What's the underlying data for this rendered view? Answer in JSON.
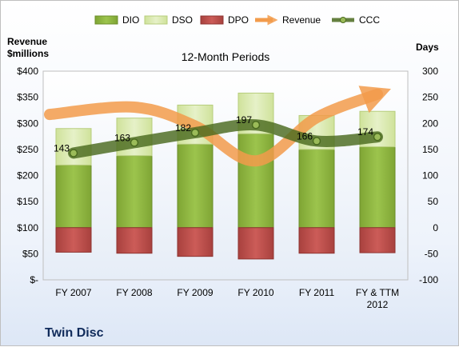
{
  "chart_data": {
    "type": "bar",
    "subtype": "stacked-bar-with-lines",
    "title": "12-Month Periods",
    "company": "Twin Disc",
    "left_axis_title": "Revenue\n$millions",
    "right_axis_title": "Days",
    "categories": [
      "FY 2007",
      "FY 2008",
      "FY 2009",
      "FY 2010",
      "FY 2011",
      "FY & TTM\n2012"
    ],
    "left_axis": {
      "min": 0,
      "max": 400,
      "step": 50,
      "tick_labels": [
        "$-",
        "$50",
        "$100",
        "$150",
        "$200",
        "$250",
        "$300",
        "$350",
        "$400"
      ]
    },
    "right_axis": {
      "min": -100,
      "max": 300,
      "step": 50,
      "tick_labels": [
        "-100",
        "-50",
        "0",
        "50",
        "100",
        "150",
        "200",
        "250",
        "300"
      ]
    },
    "legend_position": "top",
    "grid": false,
    "series": [
      {
        "name": "DIO",
        "kind": "bar",
        "axis": "days",
        "color": "#8db43f",
        "base": [
          0,
          0,
          0,
          0,
          0,
          0
        ],
        "values": [
          120,
          138,
          160,
          180,
          150,
          155
        ]
      },
      {
        "name": "DSO",
        "kind": "bar",
        "axis": "days",
        "color": "#d7e8a8",
        "base": [
          120,
          138,
          160,
          180,
          150,
          155
        ],
        "values": [
          70,
          72,
          75,
          78,
          65,
          68
        ]
      },
      {
        "name": "DPO",
        "kind": "bar",
        "axis": "days",
        "color": "#c0504d",
        "base": [
          0,
          0,
          0,
          0,
          0,
          0
        ],
        "values": [
          -47,
          -49,
          -55,
          -60,
          -49,
          -48
        ]
      },
      {
        "name": "Revenue",
        "kind": "line",
        "axis": "left",
        "color": "#f29b4b",
        "values": [
          317,
          331,
          295,
          228,
          311,
          356
        ]
      },
      {
        "name": "CCC",
        "kind": "line",
        "axis": "days",
        "color": "#4a6a1f",
        "values": [
          143,
          163,
          182,
          197,
          166,
          174
        ],
        "labels": [
          "143",
          "163",
          "182",
          "197",
          "166",
          "174"
        ]
      }
    ]
  }
}
